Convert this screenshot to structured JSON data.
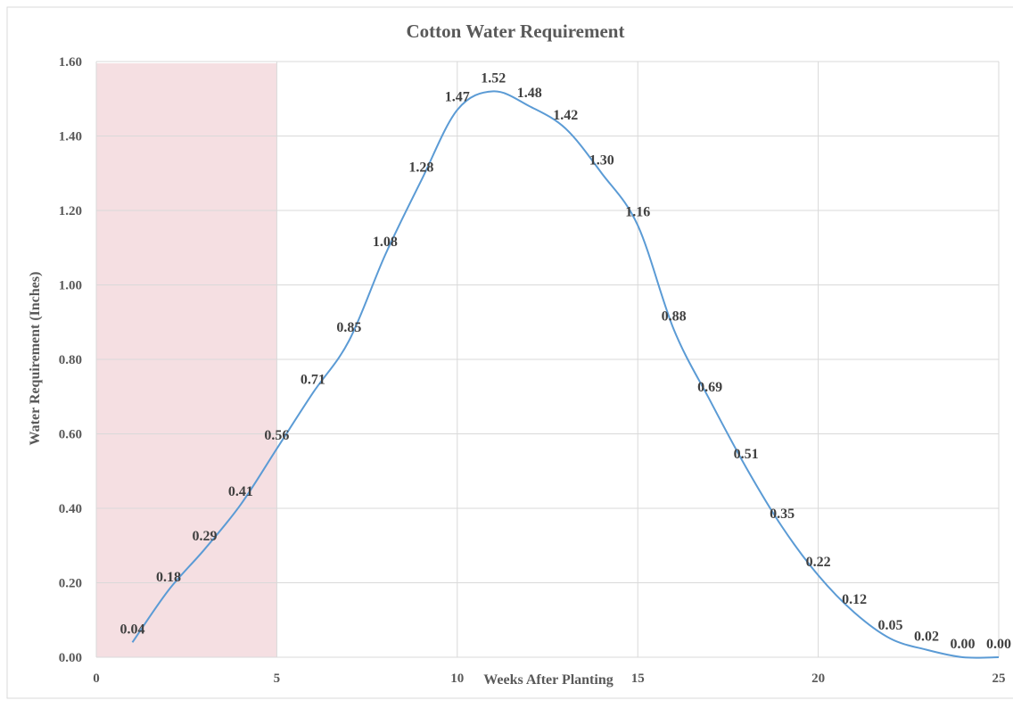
{
  "chart_data": {
    "type": "line",
    "title": "Cotton Water Requirement",
    "xlabel": "Weeks After Planting",
    "ylabel": "Water Requirement (Inches)",
    "xlim": [
      0,
      25
    ],
    "ylim": [
      0,
      1.6
    ],
    "xticks": [
      "0",
      "5",
      "10",
      "15",
      "20",
      "25"
    ],
    "yticks": [
      "0.00",
      "0.20",
      "0.40",
      "0.60",
      "0.80",
      "1.00",
      "1.20",
      "1.40",
      "1.60"
    ],
    "grid": true,
    "legend": "none",
    "highlight_region": {
      "x_start": 0,
      "x_end": 5,
      "color": "#f5dfe2"
    },
    "series": [
      {
        "color": "#5b9bd5",
        "smooth": true,
        "x": [
          1,
          2,
          3,
          4,
          5,
          6,
          7,
          8,
          9,
          10,
          11,
          12,
          13,
          14,
          15,
          16,
          17,
          18,
          19,
          20,
          21,
          22,
          23,
          24,
          25
        ],
        "values": [
          0.04,
          0.18,
          0.29,
          0.41,
          0.56,
          0.71,
          0.85,
          1.08,
          1.28,
          1.47,
          1.52,
          1.48,
          1.42,
          1.3,
          1.16,
          0.88,
          0.69,
          0.51,
          0.35,
          0.22,
          0.12,
          0.05,
          0.02,
          0.0,
          0.0
        ],
        "labels": [
          "0.04",
          "0.18",
          "0.29",
          "0.41",
          "0.56",
          "0.71",
          "0.85",
          "1.08",
          "1.28",
          "1.47",
          "1.52",
          "1.48",
          "1.42",
          "1.30",
          "1.16",
          "0.88",
          "0.69",
          "0.51",
          "0.35",
          "0.22",
          "0.12",
          "0.05",
          "0.02",
          "0.00",
          "0.00"
        ]
      }
    ]
  }
}
